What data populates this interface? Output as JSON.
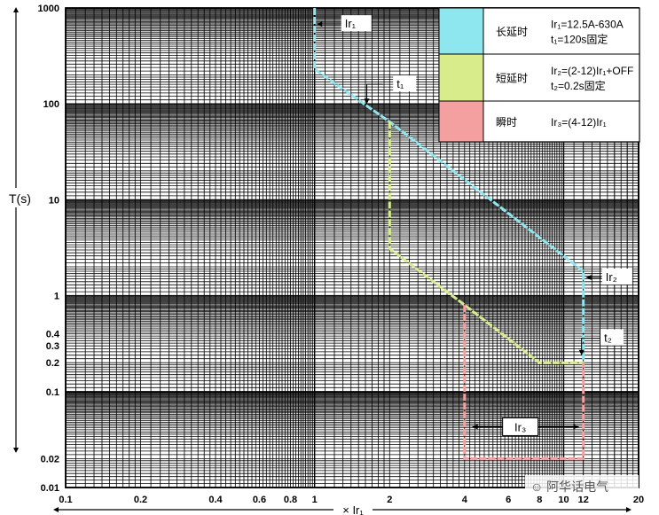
{
  "chart_data": {
    "type": "line",
    "xscale": "log",
    "yscale": "log",
    "xlim": [
      0.1,
      20
    ],
    "ylim": [
      0.01,
      1000
    ],
    "xlabel": "× Ir₁",
    "ylabel": "T(s)",
    "x_tick_labels": [
      {
        "v": 0.1,
        "t": "0.1"
      },
      {
        "v": 0.2,
        "t": "0.2"
      },
      {
        "v": 0.4,
        "t": "0.4"
      },
      {
        "v": 0.6,
        "t": "0.6"
      },
      {
        "v": 0.8,
        "t": "0.8"
      },
      {
        "v": 1,
        "t": "1"
      },
      {
        "v": 2,
        "t": "2"
      },
      {
        "v": 4,
        "t": "4"
      },
      {
        "v": 6,
        "t": "6"
      },
      {
        "v": 8,
        "t": "8"
      },
      {
        "v": 10,
        "t": "10"
      },
      {
        "v": 12,
        "t": "12"
      },
      {
        "v": 20,
        "t": "20"
      }
    ],
    "y_tick_labels": [
      {
        "v": 1000,
        "t": "1000"
      },
      {
        "v": 100,
        "t": "100"
      },
      {
        "v": 10,
        "t": "10"
      },
      {
        "v": 1,
        "t": "1"
      },
      {
        "v": 0.4,
        "t": "0.4"
      },
      {
        "v": 0.3,
        "t": "0.3"
      },
      {
        "v": 0.2,
        "t": "0.2"
      },
      {
        "v": 0.1,
        "t": "0.1"
      },
      {
        "v": 0.02,
        "t": "0.02"
      },
      {
        "v": 0.01,
        "t": "0.01"
      }
    ],
    "series": [
      {
        "color": "#8ee6ee",
        "points": [
          [
            1,
            1000
          ],
          [
            1,
            230
          ],
          [
            2,
            65
          ],
          [
            12,
            1.8
          ],
          [
            12,
            0.2
          ]
        ]
      },
      {
        "color": "#d8ec8c",
        "points": [
          [
            2,
            65
          ],
          [
            2,
            3.1
          ],
          [
            4,
            0.8
          ],
          [
            8,
            0.2
          ],
          [
            12,
            0.2
          ]
        ]
      },
      {
        "color": "#f4a0a0",
        "points": [
          [
            4,
            0.8
          ],
          [
            4,
            0.02
          ],
          [
            12,
            0.02
          ],
          [
            12,
            0.2
          ]
        ]
      }
    ],
    "annotations": [
      {
        "name": "ir1",
        "text": "Ir₁",
        "x": 1.3,
        "y": 680,
        "arrow_from": [
          1.28,
          680
        ],
        "arrow_to": [
          1.02,
          680
        ]
      },
      {
        "name": "t1",
        "text": "t₁",
        "x": 2.1,
        "y": 160,
        "arrow_from": [
          1.88,
          160
        ],
        "arrow_to": [
          1.62,
          100
        ]
      },
      {
        "name": "ir2",
        "text": "Ir₂",
        "x": 14.5,
        "y": 1.55,
        "arrow_from": [
          14.2,
          1.55
        ],
        "arrow_to": [
          12.3,
          1.55
        ]
      },
      {
        "name": "t2",
        "text": "t₂",
        "x": 14.3,
        "y": 0.36,
        "arrow_from": [
          14.1,
          0.36
        ],
        "arrow_to": [
          11.8,
          0.24
        ]
      },
      {
        "name": "ir3",
        "text": "Ir₃",
        "x": 6.7,
        "y": 0.043,
        "arrow_left": [
          4.3,
          0.043
        ],
        "arrow_right": [
          11.5,
          0.043
        ]
      }
    ],
    "legend_rows": [
      {
        "color": "#8ee6ee",
        "label": "长延时",
        "spec_lines": [
          "Ir₁=12.5A-630A",
          "t₁=120s固定"
        ]
      },
      {
        "color": "#d8ec8c",
        "label": "短延时",
        "spec_lines": [
          "Ir₂=(2-12)Ir₁+OFF",
          "t₂=0.2s固定"
        ]
      },
      {
        "color": "#f4a0a0",
        "label": "瞬时",
        "spec_lines": [
          "Ir₃=(4-12)Ir₁"
        ]
      }
    ],
    "legend_placement": "top-right",
    "grid": true
  },
  "watermark": {
    "text": "☺ 阿华话电气"
  }
}
